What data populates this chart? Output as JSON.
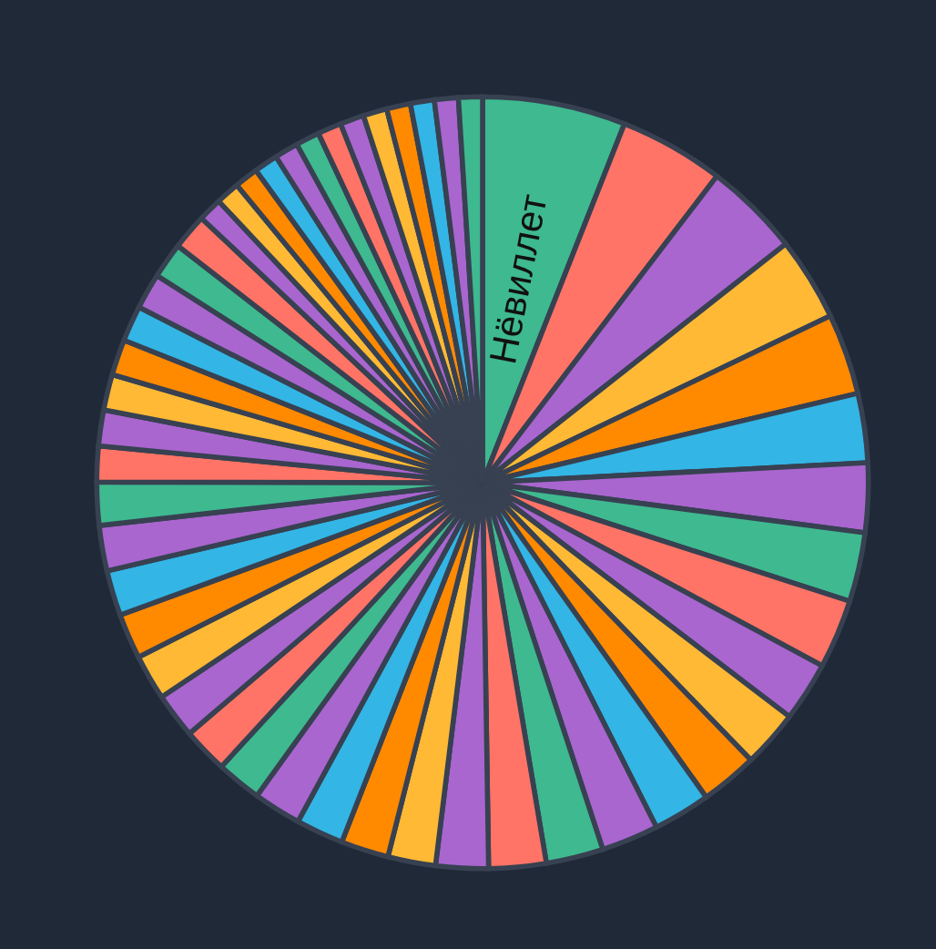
{
  "chart_data": {
    "type": "pie",
    "categories": [
      "Нёвиллет",
      null,
      null,
      null,
      null,
      null,
      null,
      null,
      null,
      null,
      null,
      null,
      null,
      null,
      null,
      null,
      null,
      null,
      null,
      null,
      null,
      null,
      null,
      null,
      null,
      null,
      null,
      null,
      null,
      null,
      null,
      null,
      null,
      null,
      null,
      null,
      null,
      null,
      null,
      null,
      null,
      null,
      null,
      null,
      null,
      null,
      null,
      null,
      null,
      null
    ],
    "values": [
      6.0,
      4.4,
      4.0,
      3.5,
      3.4,
      2.9,
      2.9,
      2.9,
      2.9,
      2.5,
      2.4,
      2.4,
      2.4,
      2.4,
      2.4,
      2.4,
      2.2,
      2.0,
      2.0,
      2.0,
      2.0,
      1.9,
      1.9,
      1.9,
      1.9,
      1.9,
      1.9,
      1.9,
      1.8,
      1.5,
      1.5,
      1.5,
      1.5,
      1.5,
      1.5,
      1.5,
      1.5,
      1.0,
      1.0,
      1.0,
      1.0,
      1.0,
      1.0,
      1.0,
      1.0,
      1.0,
      1.0,
      1.0,
      1.0,
      1.0
    ],
    "colors": [
      "#3fb98f",
      "#ff7466",
      "#a966cf",
      "#ffb935",
      "#ff8a00",
      "#33b5e5",
      "#a966cf",
      "#3fb98f",
      "#ff7466",
      "#a966cf",
      "#ffb935",
      "#ff8a00",
      "#33b5e5",
      "#a966cf",
      "#3fb98f",
      "#ff7466",
      "#a966cf",
      "#ffb935",
      "#ff8a00",
      "#33b5e5",
      "#a966cf",
      "#3fb98f",
      "#ff7466",
      "#a966cf",
      "#ffb935",
      "#ff8a00",
      "#33b5e5",
      "#a966cf",
      "#3fb98f",
      "#ff7466",
      "#a966cf",
      "#ffb935",
      "#ff8a00",
      "#33b5e5",
      "#a966cf",
      "#3fb98f",
      "#ff7466",
      "#a966cf",
      "#ffb935",
      "#ff8a00",
      "#33b5e5",
      "#a966cf",
      "#3fb98f",
      "#ff7466",
      "#a966cf",
      "#ffb935",
      "#ff8a00",
      "#33b5e5",
      "#a966cf",
      "#3fb98f"
    ]
  }
}
